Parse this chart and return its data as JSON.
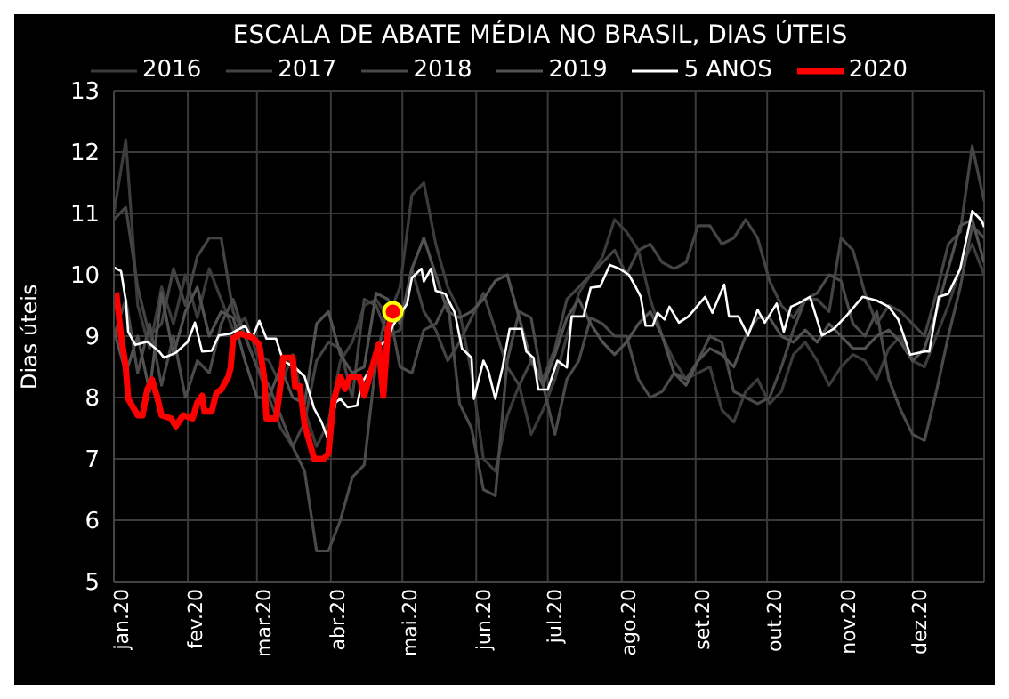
{
  "chart_data": {
    "type": "line",
    "title": "ESCALA DE ABATE MÉDIA NO BRASIL, DIAS ÚTEIS",
    "ylabel": "Dias úteis",
    "xlim": [
      "2020-01-01",
      "2020-12-31"
    ],
    "xticks": [
      {
        "value": "2020-01-01",
        "label": "jan.20"
      },
      {
        "value": "2020-02-01",
        "label": "fev.20"
      },
      {
        "value": "2020-03-01",
        "label": "mar.20"
      },
      {
        "value": "2020-04-01",
        "label": "abr.20"
      },
      {
        "value": "2020-05-01",
        "label": "mai.20"
      },
      {
        "value": "2020-06-01",
        "label": "jun.20"
      },
      {
        "value": "2020-07-01",
        "label": "jul.20"
      },
      {
        "value": "2020-08-01",
        "label": "ago.20"
      },
      {
        "value": "2020-09-01",
        "label": "set.20"
      },
      {
        "value": "2020-10-01",
        "label": "out.20"
      },
      {
        "value": "2020-11-01",
        "label": "nov.20"
      },
      {
        "value": "2020-12-01",
        "label": "dez.20"
      }
    ],
    "ylim": [
      5,
      13
    ],
    "yticks": [
      5,
      6,
      7,
      8,
      9,
      10,
      11,
      12,
      13
    ],
    "grid": true,
    "legend": "top",
    "marker": "none",
    "line_style": "solid",
    "x": [
      "2020-01-01",
      "2020-01-06",
      "2020-01-11",
      "2020-01-16",
      "2020-01-21",
      "2020-01-26",
      "2020-01-31",
      "2020-02-05",
      "2020-02-10",
      "2020-02-15",
      "2020-02-20",
      "2020-02-25",
      "2020-03-01",
      "2020-03-06",
      "2020-03-11",
      "2020-03-16",
      "2020-03-21",
      "2020-03-26",
      "2020-03-31",
      "2020-04-05",
      "2020-04-10",
      "2020-04-15",
      "2020-04-20",
      "2020-04-25",
      "2020-04-30",
      "2020-05-05",
      "2020-05-10",
      "2020-05-15",
      "2020-05-20",
      "2020-05-25",
      "2020-05-30",
      "2020-06-04",
      "2020-06-09",
      "2020-06-14",
      "2020-06-19",
      "2020-06-24",
      "2020-06-29",
      "2020-07-04",
      "2020-07-09",
      "2020-07-14",
      "2020-07-19",
      "2020-07-24",
      "2020-07-29",
      "2020-08-03",
      "2020-08-08",
      "2020-08-13",
      "2020-08-18",
      "2020-08-23",
      "2020-08-28",
      "2020-09-02",
      "2020-09-07",
      "2020-09-12",
      "2020-09-17",
      "2020-09-22",
      "2020-09-27",
      "2020-10-02",
      "2020-10-07",
      "2020-10-12",
      "2020-10-17",
      "2020-10-22",
      "2020-10-27",
      "2020-11-01",
      "2020-11-06",
      "2020-11-11",
      "2020-11-16",
      "2020-11-21",
      "2020-11-26",
      "2020-12-01",
      "2020-12-06",
      "2020-12-11",
      "2020-12-16",
      "2020-12-21",
      "2020-12-26",
      "2020-12-31"
    ],
    "series": [
      {
        "name": "2016",
        "color": "#3c3c3c",
        "values": [
          11.0,
          12.2,
          9.5,
          8.8,
          9.8,
          9.2,
          10.0,
          9.3,
          10.1,
          9.6,
          9.1,
          9.3,
          8.7,
          8.6,
          8.2,
          8.7,
          7.8,
          7.2,
          7.6,
          8.6,
          8.9,
          9.5,
          9.6,
          9.3,
          9.8,
          11.3,
          11.5,
          10.5,
          9.8,
          9.4,
          8.4,
          7.0,
          6.8,
          7.7,
          8.2,
          7.4,
          7.8,
          8.3,
          9.0,
          9.7,
          10.0,
          10.3,
          10.9,
          10.7,
          10.4,
          9.6,
          9.0,
          8.6,
          8.3,
          8.4,
          8.5,
          7.8,
          7.6,
          8.1,
          8.3,
          7.9,
          8.1,
          8.7,
          8.9,
          8.6,
          8.2,
          8.5,
          8.7,
          8.6,
          8.3,
          8.8,
          9.0,
          8.6,
          8.5,
          9.0,
          9.5,
          10.1,
          10.5,
          10.0
        ]
      },
      {
        "name": "2017",
        "color": "#444444",
        "values": [
          10.9,
          11.1,
          9.8,
          9.0,
          9.2,
          10.1,
          9.5,
          10.3,
          10.6,
          10.6,
          9.4,
          9.0,
          8.5,
          8.0,
          7.5,
          7.2,
          7.6,
          8.6,
          8.9,
          8.8,
          8.0,
          9.6,
          9.5,
          9.0,
          9.1,
          10.1,
          9.4,
          9.1,
          8.6,
          8.9,
          9.3,
          9.7,
          9.1,
          8.5,
          8.2,
          8.6,
          8.3,
          8.8,
          9.6,
          9.8,
          10.0,
          10.2,
          10.4,
          10.0,
          10.4,
          10.5,
          10.2,
          10.1,
          10.2,
          10.8,
          10.8,
          10.5,
          10.6,
          10.9,
          10.6,
          9.9,
          9.5,
          9.3,
          9.6,
          9.6,
          9.4,
          10.6,
          10.4,
          9.7,
          9.2,
          9.5,
          9.4,
          9.2,
          9.0,
          9.7,
          10.5,
          10.7,
          12.1,
          11.2
        ]
      },
      {
        "name": "2018",
        "color": "#4a4a4a",
        "values": [
          9.0,
          9.6,
          8.4,
          9.2,
          8.2,
          9.0,
          8.0,
          8.6,
          8.4,
          9.2,
          9.6,
          9.0,
          8.5,
          8.2,
          7.7,
          7.2,
          6.8,
          5.5,
          5.5,
          6.0,
          6.7,
          6.9,
          8.6,
          9.5,
          8.5,
          8.4,
          9.1,
          9.2,
          9.6,
          7.9,
          7.5,
          6.5,
          6.4,
          8.6,
          9.4,
          9.3,
          8.2,
          7.4,
          8.3,
          8.6,
          9.3,
          9.2,
          9.0,
          9.0,
          8.3,
          8.0,
          8.1,
          8.4,
          8.3,
          8.6,
          9.0,
          8.9,
          8.1,
          8.0,
          7.9,
          8.0,
          8.5,
          9.1,
          9.6,
          9.7,
          10.0,
          9.9,
          9.2,
          9.0,
          9.4,
          8.3,
          7.8,
          7.4,
          7.3,
          8.1,
          9.0,
          9.8,
          10.8,
          10.6
        ]
      },
      {
        "name": "2019",
        "color": "#525252",
        "values": [
          9.1,
          8.4,
          9.0,
          8.1,
          9.7,
          8.7,
          9.4,
          9.8,
          9.0,
          9.4,
          9.3,
          8.6,
          8.0,
          8.0,
          8.5,
          8.0,
          7.9,
          9.2,
          9.4,
          8.7,
          8.4,
          8.5,
          9.7,
          9.6,
          9.2,
          10.1,
          10.6,
          10.0,
          9.4,
          9.3,
          9.4,
          9.6,
          9.9,
          10.0,
          9.3,
          8.6,
          8.2,
          8.7,
          9.3,
          9.6,
          9.2,
          8.9,
          8.7,
          8.9,
          9.2,
          9.4,
          9.0,
          8.4,
          8.2,
          8.6,
          8.8,
          8.7,
          8.5,
          9.0,
          9.3,
          9.3,
          9.0,
          8.9,
          9.1,
          8.9,
          9.2,
          9.0,
          8.8,
          8.8,
          9.0,
          9.1,
          8.9,
          8.6,
          8.8,
          9.4,
          10.1,
          10.8,
          10.9,
          10.2
        ]
      },
      {
        "name": "5 ANOS",
        "color": "#ffffff",
        "x": [
          "2020-01-01",
          "2020-01-04",
          "2020-01-06",
          "2020-01-07",
          "2020-01-10",
          "2020-01-15",
          "2020-01-20",
          "2020-01-22",
          "2020-01-27",
          "2020-02-01",
          "2020-02-04",
          "2020-02-07",
          "2020-02-11",
          "2020-02-14",
          "2020-02-19",
          "2020-02-25",
          "2020-02-28",
          "2020-03-02",
          "2020-03-05",
          "2020-03-09",
          "2020-03-12",
          "2020-03-17",
          "2020-03-21",
          "2020-03-25",
          "2020-03-28",
          "2020-03-31",
          "2020-04-03",
          "2020-04-05",
          "2020-04-08",
          "2020-04-12",
          "2020-04-14",
          "2020-04-18",
          "2020-04-22",
          "2020-04-25",
          "2020-04-27",
          "2020-05-03",
          "2020-05-05",
          "2020-05-09",
          "2020-05-10",
          "2020-05-13",
          "2020-05-15",
          "2020-05-19",
          "2020-05-23",
          "2020-05-26",
          "2020-05-30",
          "2020-05-31",
          "2020-06-04",
          "2020-06-06",
          "2020-06-09",
          "2020-06-12",
          "2020-06-15",
          "2020-06-20",
          "2020-06-22",
          "2020-06-25",
          "2020-06-27",
          "2020-07-01",
          "2020-07-05",
          "2020-07-09",
          "2020-07-11",
          "2020-07-16",
          "2020-07-19",
          "2020-07-23",
          "2020-07-27",
          "2020-07-31",
          "2020-08-04",
          "2020-08-07",
          "2020-08-09",
          "2020-08-11",
          "2020-08-14",
          "2020-08-16",
          "2020-08-19",
          "2020-08-21",
          "2020-08-25",
          "2020-08-29",
          "2020-09-05",
          "2020-09-08",
          "2020-09-13",
          "2020-09-15",
          "2020-09-19",
          "2020-09-23",
          "2020-09-27",
          "2020-09-30",
          "2020-10-05",
          "2020-10-08",
          "2020-10-11",
          "2020-10-14",
          "2020-10-19",
          "2020-10-24",
          "2020-10-29",
          "2020-11-03",
          "2020-11-10",
          "2020-11-16",
          "2020-11-21",
          "2020-11-25",
          "2020-11-30",
          "2020-12-06",
          "2020-12-08",
          "2020-12-12",
          "2020-12-16",
          "2020-12-21",
          "2020-12-26",
          "2020-12-30",
          "2020-12-31"
        ],
        "values": [
          10.12,
          10.06,
          9.58,
          9.07,
          8.86,
          8.91,
          8.75,
          8.65,
          8.73,
          8.91,
          9.22,
          8.75,
          8.76,
          9.01,
          9.04,
          9.17,
          8.96,
          9.25,
          8.96,
          8.96,
          8.6,
          8.49,
          8.34,
          7.82,
          7.61,
          7.3,
          7.92,
          7.98,
          7.84,
          7.87,
          8.24,
          8.49,
          8.86,
          8.96,
          9.17,
          9.53,
          9.95,
          10.1,
          9.89,
          10.1,
          9.74,
          9.69,
          9.38,
          8.8,
          8.65,
          7.98,
          8.6,
          8.44,
          7.98,
          8.49,
          9.12,
          9.12,
          8.75,
          8.65,
          8.13,
          8.13,
          8.6,
          8.49,
          9.32,
          9.32,
          9.79,
          9.81,
          10.16,
          10.1,
          10.0,
          9.79,
          9.64,
          9.17,
          9.17,
          9.38,
          9.27,
          9.48,
          9.22,
          9.32,
          9.64,
          9.38,
          9.84,
          9.32,
          9.32,
          9.01,
          9.43,
          9.22,
          9.53,
          9.07,
          9.48,
          9.53,
          9.64,
          9.01,
          9.12,
          9.32,
          9.64,
          9.58,
          9.48,
          9.27,
          8.7,
          8.75,
          8.75,
          9.64,
          9.69,
          10.1,
          11.04,
          10.88,
          10.78
        ]
      },
      {
        "name": "2020",
        "color": "#ff0000",
        "x": [
          "2020-01-02",
          "2020-01-04",
          "2020-01-06",
          "2020-01-07",
          "2020-01-11",
          "2020-01-13",
          "2020-01-15",
          "2020-01-17",
          "2020-01-19",
          "2020-01-21",
          "2020-01-25",
          "2020-01-27",
          "2020-01-30",
          "2020-02-03",
          "2020-02-05",
          "2020-02-07",
          "2020-02-08",
          "2020-02-11",
          "2020-02-13",
          "2020-02-15",
          "2020-02-18",
          "2020-02-19",
          "2020-02-20",
          "2020-02-23",
          "2020-02-28",
          "2020-03-02",
          "2020-03-04",
          "2020-03-05",
          "2020-03-09",
          "2020-03-11",
          "2020-03-12",
          "2020-03-16",
          "2020-03-17",
          "2020-03-19",
          "2020-03-21",
          "2020-03-25",
          "2020-03-29",
          "2020-03-31",
          "2020-04-02",
          "2020-04-05",
          "2020-04-07",
          "2020-04-09",
          "2020-04-13",
          "2020-04-15",
          "2020-04-21",
          "2020-04-23",
          "2020-04-25",
          "2020-04-27"
        ],
        "values": [
          9.71,
          9.01,
          8.49,
          7.98,
          7.71,
          7.71,
          8.13,
          8.29,
          8.03,
          7.71,
          7.66,
          7.53,
          7.71,
          7.66,
          7.92,
          8.03,
          7.77,
          7.77,
          8.08,
          8.13,
          8.34,
          8.49,
          8.96,
          9.04,
          8.98,
          8.86,
          8.34,
          7.66,
          7.66,
          8.24,
          8.65,
          8.65,
          8.18,
          8.18,
          7.56,
          7.0,
          7.0,
          7.09,
          7.92,
          8.34,
          8.14,
          8.34,
          8.34,
          8.03,
          8.86,
          8.03,
          9.12,
          9.4
        ]
      }
    ]
  }
}
